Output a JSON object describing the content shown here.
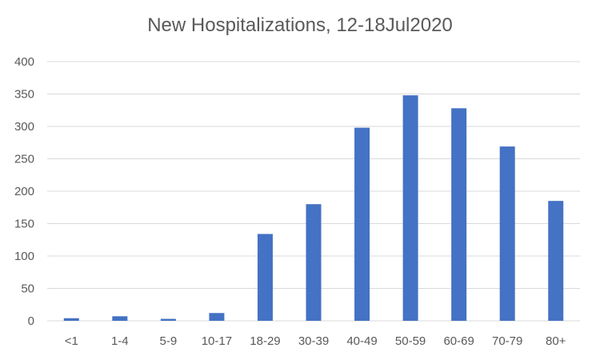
{
  "chart_data": {
    "type": "bar",
    "title": "New Hospitalizations, 12-18Jul2020",
    "categories": [
      "<1",
      "1-4",
      "5-9",
      "10-17",
      "18-29",
      "30-39",
      "40-49",
      "50-59",
      "60-69",
      "70-79",
      "80+"
    ],
    "values": [
      4,
      7,
      3,
      12,
      134,
      180,
      298,
      348,
      328,
      269,
      185
    ],
    "ylim": [
      0,
      400
    ],
    "yticks": [
      0,
      50,
      100,
      150,
      200,
      250,
      300,
      350,
      400
    ],
    "grid": true,
    "legend": "none",
    "bar_color": "#4472C4",
    "grid_color": "#D9D9D9",
    "text_color": "#595959"
  }
}
